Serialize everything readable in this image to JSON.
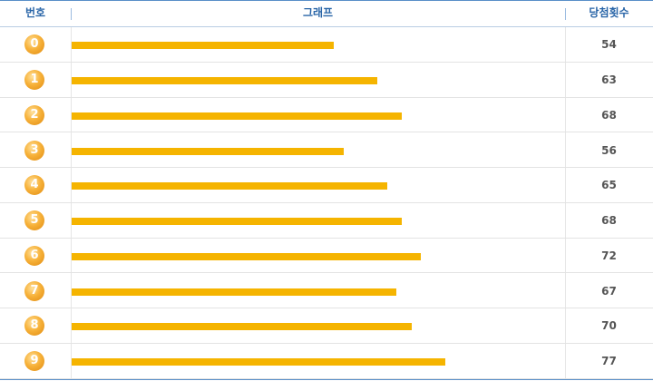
{
  "header": {
    "number": "번호",
    "graph": "그래프",
    "count": "당첨횟수"
  },
  "rows": [
    {
      "number": "0",
      "count": 54
    },
    {
      "number": "1",
      "count": 63
    },
    {
      "number": "2",
      "count": 68
    },
    {
      "number": "3",
      "count": 56
    },
    {
      "number": "4",
      "count": 65
    },
    {
      "number": "5",
      "count": 68
    },
    {
      "number": "6",
      "count": 72
    },
    {
      "number": "7",
      "count": 67
    },
    {
      "number": "8",
      "count": 70
    },
    {
      "number": "9",
      "count": 77
    }
  ]
}
